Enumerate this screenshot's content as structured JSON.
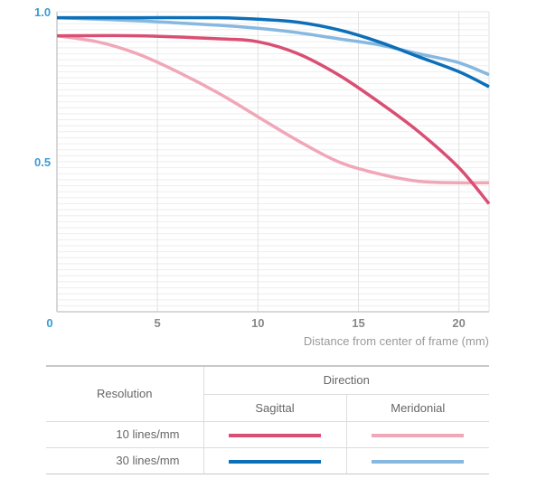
{
  "chart_data": {
    "type": "line",
    "title": "",
    "xlabel": "Distance from center of frame (mm)",
    "ylabel": "",
    "xlim": [
      0,
      21.5
    ],
    "ylim": [
      0,
      1.0
    ],
    "x_ticks": [
      "0",
      "5",
      "10",
      "15",
      "20"
    ],
    "y_ticks": [
      "0.5",
      "1.0"
    ],
    "grid": true,
    "series": [
      {
        "name": "10 lines/mm Sagittal",
        "color": "#d94f74",
        "x": [
          0,
          4,
          8,
          10,
          12,
          14,
          16,
          18,
          20,
          21.5
        ],
        "y": [
          0.92,
          0.92,
          0.91,
          0.9,
          0.86,
          0.79,
          0.7,
          0.6,
          0.48,
          0.36
        ]
      },
      {
        "name": "10 lines/mm Meridonial",
        "color": "#f0a7b8",
        "x": [
          0,
          2,
          4,
          6,
          8,
          10,
          12,
          14,
          16,
          18,
          20,
          21.5
        ],
        "y": [
          0.92,
          0.9,
          0.86,
          0.8,
          0.73,
          0.65,
          0.57,
          0.5,
          0.46,
          0.435,
          0.43,
          0.43
        ]
      },
      {
        "name": "30 lines/mm Sagittal",
        "color": "#0c6fb8",
        "x": [
          0,
          4,
          8,
          10,
          12,
          14,
          16,
          18,
          20,
          21.5
        ],
        "y": [
          0.98,
          0.98,
          0.98,
          0.975,
          0.965,
          0.94,
          0.9,
          0.85,
          0.8,
          0.75
        ]
      },
      {
        "name": "30 lines/mm Meridonial",
        "color": "#86b8e0",
        "x": [
          0,
          4,
          8,
          10,
          12,
          14,
          16,
          18,
          20,
          21.5
        ],
        "y": [
          0.98,
          0.97,
          0.955,
          0.945,
          0.93,
          0.91,
          0.89,
          0.86,
          0.83,
          0.79
        ]
      }
    ]
  },
  "legend": {
    "direction_label": "Direction",
    "resolution_label": "Resolution",
    "sagittal_label": "Sagittal",
    "meridonial_label": "Meridonial",
    "rows": [
      {
        "label": "10 lines/mm",
        "sagittal_color": "#d94f74",
        "meridonial_color": "#f0a7b8"
      },
      {
        "label": "30 lines/mm",
        "sagittal_color": "#0c6fb8",
        "meridonial_color": "#86b8e0"
      }
    ]
  }
}
